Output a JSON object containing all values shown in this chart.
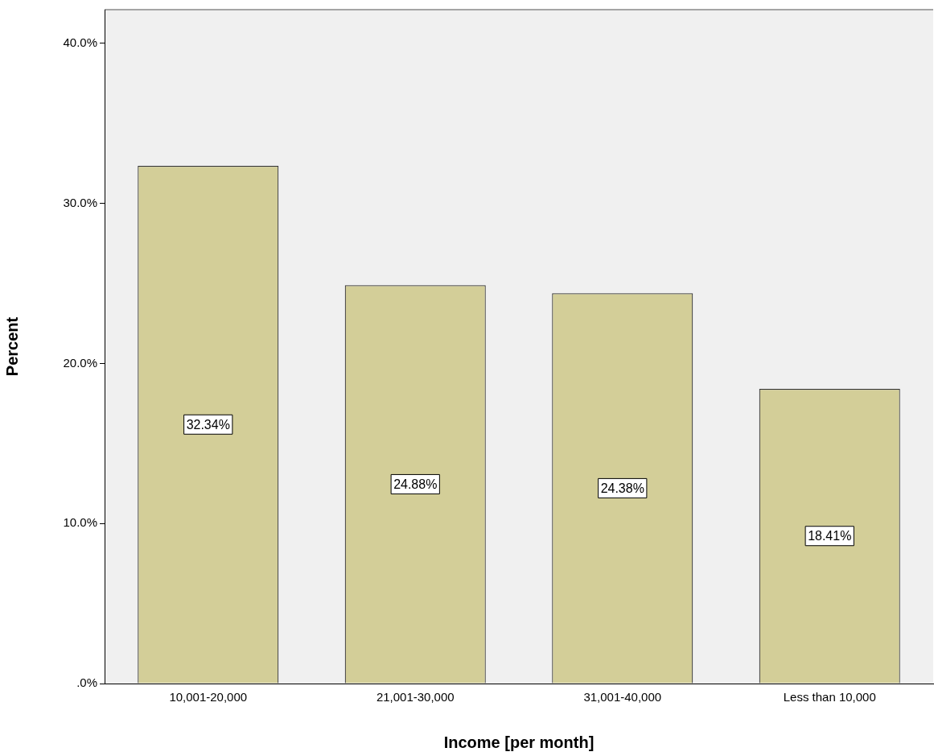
{
  "chart_data": {
    "type": "bar",
    "xlabel": "Income [per month]",
    "ylabel": "Percent",
    "categories": [
      "10,001-20,000",
      "21,001-30,000",
      "31,001-40,000",
      "Less than 10,000"
    ],
    "values": [
      32.34,
      24.88,
      24.38,
      18.41
    ],
    "value_labels": [
      "32.34%",
      "24.88%",
      "24.38%",
      "18.41%"
    ],
    "color": "#d3ce98",
    "ylim": [
      0,
      42.1
    ],
    "yticks": [
      {
        "value": 0,
        "label": ".0%"
      },
      {
        "value": 10,
        "label": "10.0%"
      },
      {
        "value": 20,
        "label": "20.0%"
      },
      {
        "value": 30,
        "label": "30.0%"
      },
      {
        "value": 40,
        "label": "40.0%"
      }
    ],
    "grid": false,
    "legend": false
  }
}
